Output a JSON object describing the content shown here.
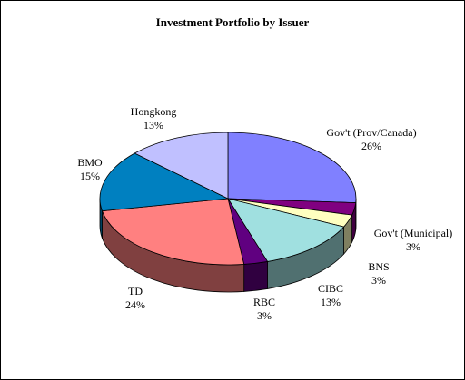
{
  "chart_data": {
    "type": "pie",
    "title": "Investment Portfolio by Issuer",
    "slices": [
      {
        "label": "Gov't (Prov/Canada)",
        "value": 26,
        "value_label": "26%",
        "top_color": "#8080ff",
        "side_color": "#40407f"
      },
      {
        "label": "Gov't (Municipal)",
        "value": 3,
        "value_label": "3%",
        "top_color": "#800080",
        "side_color": "#400040"
      },
      {
        "label": "BNS",
        "value": 3,
        "value_label": "3%",
        "top_color": "#ffffc0",
        "side_color": "#7f7f60"
      },
      {
        "label": "CIBC",
        "value": 13,
        "value_label": "13%",
        "top_color": "#a0e0e0",
        "side_color": "#507070"
      },
      {
        "label": "RBC",
        "value": 3,
        "value_label": "3%",
        "top_color": "#600080",
        "side_color": "#300040"
      },
      {
        "label": "TD",
        "value": 24,
        "value_label": "24%",
        "top_color": "#ff8080",
        "side_color": "#804040"
      },
      {
        "label": "BMO",
        "value": 15,
        "value_label": "15%",
        "top_color": "#0080c0",
        "side_color": "#004060"
      },
      {
        "label": "Hongkong",
        "value": 13,
        "value_label": "13%",
        "top_color": "#c0c0ff",
        "side_color": "#60607f"
      }
    ]
  }
}
